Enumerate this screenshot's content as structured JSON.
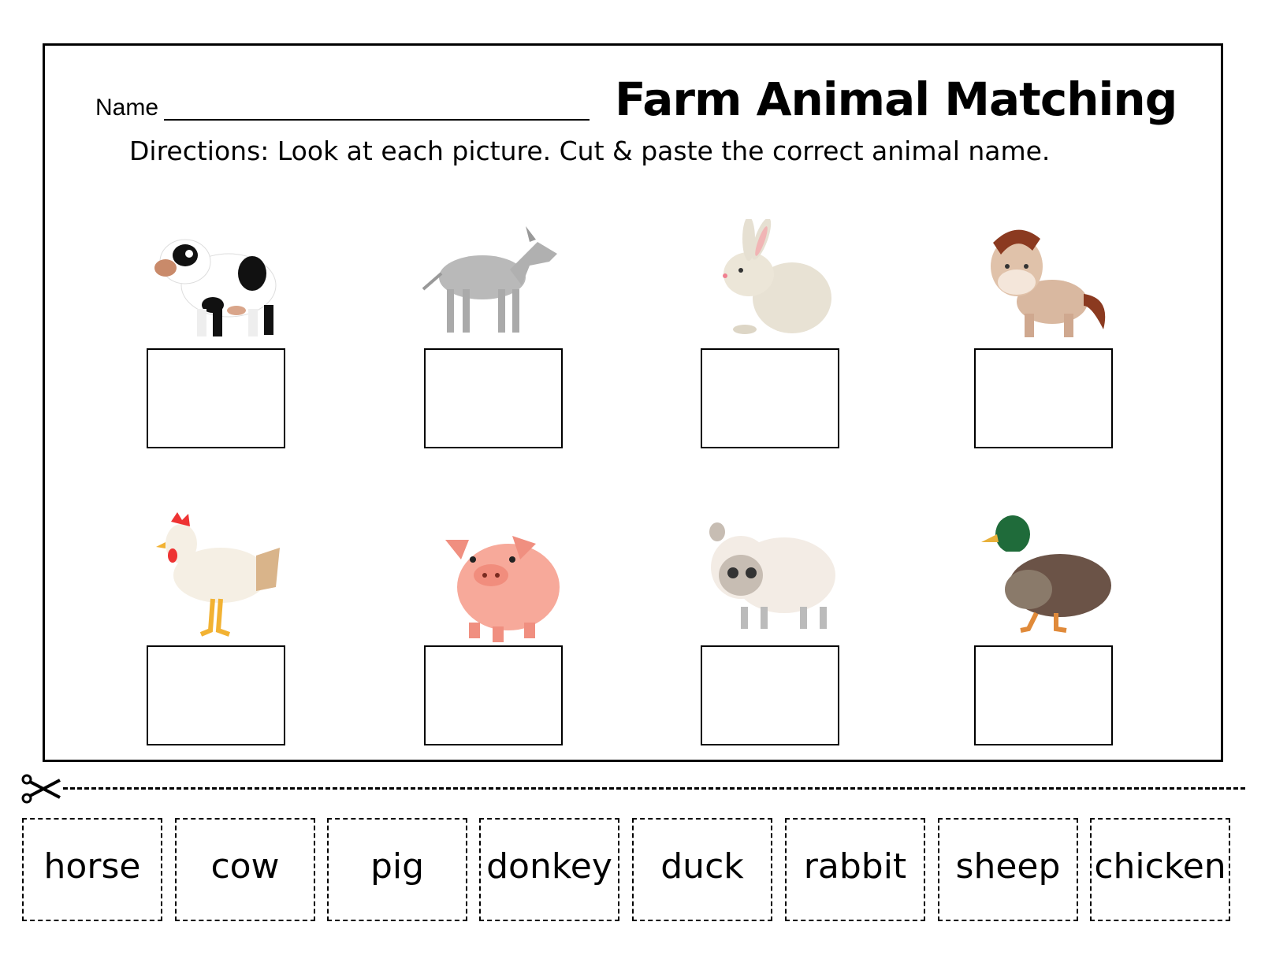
{
  "worksheet": {
    "name_label": "Name",
    "title": "Farm Animal Matching",
    "directions": "Directions:  Look at each picture.  Cut & paste the correct animal name."
  },
  "pictures": [
    {
      "animal": "cow-icon"
    },
    {
      "animal": "donkey-icon"
    },
    {
      "animal": "rabbit-icon"
    },
    {
      "animal": "horse-icon"
    },
    {
      "animal": "chicken-icon"
    },
    {
      "animal": "pig-icon"
    },
    {
      "animal": "sheep-icon"
    },
    {
      "animal": "duck-icon"
    }
  ],
  "cut_icon": "scissors-icon",
  "word_cards": [
    "horse",
    "cow",
    "pig",
    "donkey",
    "duck",
    "rabbit",
    "sheep",
    "chicken"
  ]
}
